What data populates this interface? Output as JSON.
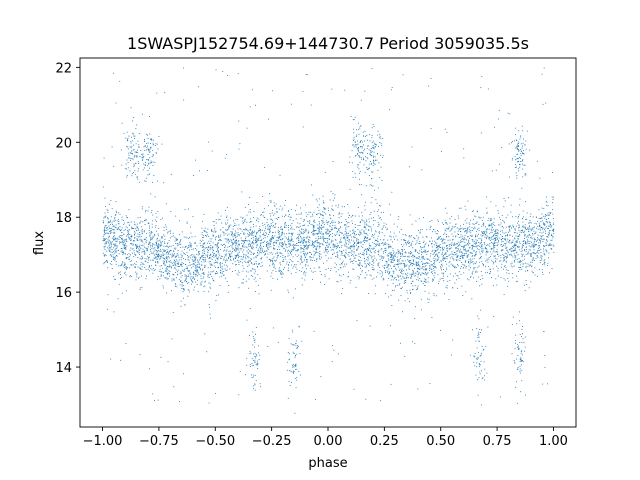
{
  "chart_data": {
    "type": "scatter",
    "title": "1SWASPJ152754.69+144730.7 Period 3059035.5s",
    "xlabel": "phase",
    "ylabel": "flux",
    "xlim": [
      -1.1,
      1.1
    ],
    "ylim": [
      12.4,
      22.25
    ],
    "x_ticks": [
      -1.0,
      -0.75,
      -0.5,
      -0.25,
      0.0,
      0.25,
      0.5,
      0.75,
      1.0
    ],
    "x_tick_labels": [
      "−1.00",
      "−0.75",
      "−0.50",
      "−0.25",
      "0.00",
      "0.25",
      "0.50",
      "0.75",
      "1.00"
    ],
    "y_ticks": [
      14,
      16,
      18,
      20,
      22
    ],
    "y_tick_labels": [
      "14",
      "16",
      "18",
      "20",
      "22"
    ],
    "grid": false,
    "legend": "none",
    "colors": {
      "points": "#1f77b4"
    },
    "series": [
      {
        "phase_x": [
          -1.0,
          -0.95,
          -0.9,
          -0.85,
          -0.8,
          -0.75,
          -0.7,
          -0.65,
          -0.6,
          -0.55,
          -0.5,
          -0.45,
          -0.4,
          -0.35,
          -0.3,
          -0.25,
          -0.2,
          -0.15,
          -0.1,
          -0.05,
          0.0,
          0.05,
          0.1,
          0.15,
          0.2,
          0.25,
          0.3,
          0.35,
          0.4,
          0.45,
          0.5,
          0.55,
          0.6,
          0.65,
          0.7,
          0.75,
          0.8,
          0.85,
          0.9,
          0.95,
          1.0
        ],
        "median_flux": [
          17.6,
          17.4,
          17.2,
          17.2,
          17.3,
          17.1,
          16.9,
          16.8,
          16.8,
          16.9,
          17.0,
          17.2,
          17.2,
          17.2,
          17.3,
          17.4,
          17.3,
          17.2,
          17.3,
          17.5,
          17.6,
          17.4,
          17.2,
          17.2,
          17.3,
          17.1,
          16.9,
          16.8,
          16.8,
          16.9,
          17.0,
          17.2,
          17.2,
          17.2,
          17.3,
          17.4,
          17.3,
          17.2,
          17.3,
          17.5,
          17.6
        ],
        "high_cluster_flux": 19.7,
        "high_cluster_phases": [
          -0.87,
          -0.8,
          0.13,
          0.2,
          0.85
        ],
        "low_cluster_flux": 14.3,
        "low_cluster_phases": [
          -0.33,
          -0.15,
          0.67,
          0.85
        ]
      }
    ]
  }
}
